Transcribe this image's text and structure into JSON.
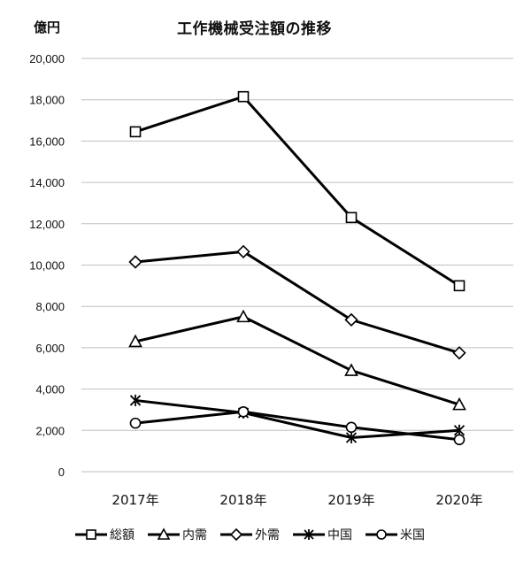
{
  "chart_data": {
    "type": "line",
    "title": "工作機械受注額の推移",
    "ylabel": "億円",
    "xlabel": "",
    "categories": [
      "2017年",
      "2018年",
      "2019年",
      "2020年"
    ],
    "ylim": [
      0,
      20000
    ],
    "yticks": [
      0,
      2000,
      4000,
      6000,
      8000,
      10000,
      12000,
      14000,
      16000,
      18000,
      20000
    ],
    "ytick_labels": [
      "0",
      "2,000",
      "4,000",
      "6,000",
      "8,000",
      "10,000",
      "12,000",
      "14,000",
      "16,000",
      "18,000",
      "20,000"
    ],
    "grid": true,
    "legend_position": "bottom",
    "series": [
      {
        "name": "総額",
        "marker": "square",
        "values": [
          16450,
          18150,
          12300,
          9000
        ]
      },
      {
        "name": "内需",
        "marker": "triangle",
        "values": [
          6300,
          7500,
          4900,
          3250
        ]
      },
      {
        "name": "外需",
        "marker": "diamond",
        "values": [
          10150,
          10650,
          7350,
          5750
        ]
      },
      {
        "name": "中国",
        "marker": "asterisk",
        "values": [
          3450,
          2850,
          1650,
          2000
        ]
      },
      {
        "name": "米国",
        "marker": "circle",
        "values": [
          2350,
          2900,
          2150,
          1550
        ]
      }
    ],
    "line_color": "#000000",
    "grid_color": "#bfbfbf"
  }
}
